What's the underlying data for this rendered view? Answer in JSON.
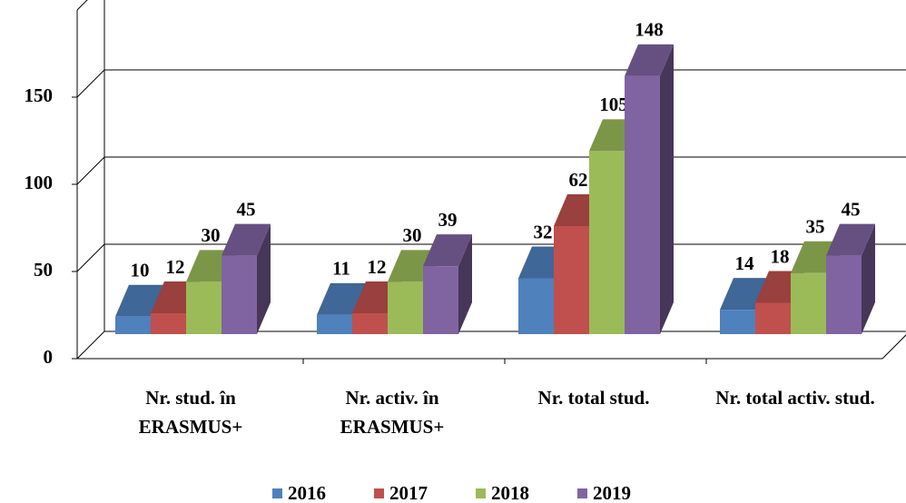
{
  "chart_data": {
    "type": "bar3d",
    "categories": [
      "Nr. stud. în ERASMUS+",
      "Nr. activ. în ERASMUS+",
      "Nr. total stud.",
      "Nr. total activ. stud."
    ],
    "series": [
      {
        "name": "2016",
        "color": "#4f81bd",
        "values": [
          10,
          11,
          32,
          14
        ]
      },
      {
        "name": "2017",
        "color": "#c0504d",
        "values": [
          12,
          12,
          62,
          18
        ]
      },
      {
        "name": "2018",
        "color": "#9bbb59",
        "values": [
          30,
          30,
          105,
          35
        ]
      },
      {
        "name": "2019",
        "color": "#8064a2",
        "values": [
          45,
          39,
          148,
          45
        ]
      }
    ],
    "ylim": [
      0,
      200
    ],
    "yticks": [
      0,
      50,
      100,
      150
    ],
    "grid": true,
    "legend": "bottom"
  }
}
